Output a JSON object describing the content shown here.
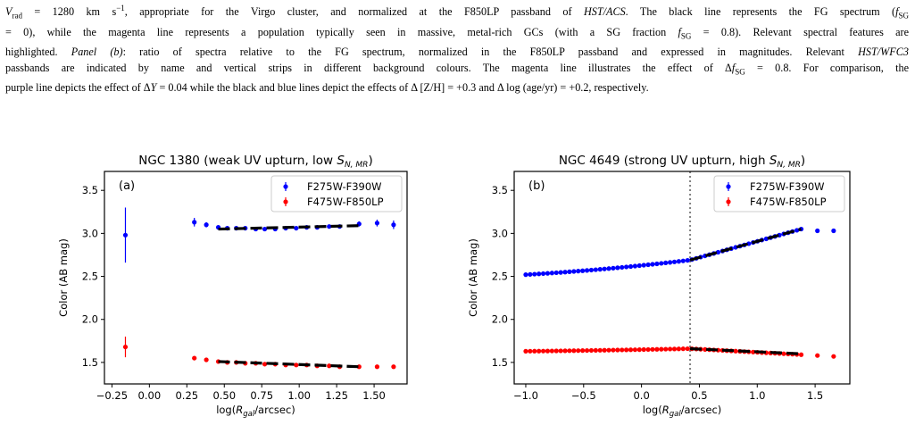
{
  "caption": {
    "lines": [
      "V_rad = 1280 km s^-1, appropriate for the Virgo cluster, and normalized at the F850LP passband of HST/ACS. The black line represents the FG spectrum (f_SG",
      "= 0), while the magenta line represents a population typically seen in massive, metal-rich GCs (with a SG fraction f_SG = 0.8). Relevant spectral features are",
      "highlighted. Panel (b): ratio of spectra relative to the FG spectrum, normalized in the F850LP passband and expressed in magnitudes. Relevant HST/WFC3",
      "passbands are indicated by name and vertical strips in different background colours. The magenta line illustrates the effect of Δf_SG = 0.8. For comparison, the",
      "purple line depicts the effect of ΔY = 0.04 while the black and blue lines depict the effects of Δ[Z/H] = +0.3 and Δlog(age/yr) = +0.2, respectively."
    ]
  },
  "chart_data": [
    {
      "type": "scatter",
      "title": "NGC 1380 (weak UV upturn, low S_N, MR)",
      "title_main": "NGC 1380 (weak UV upturn, low ",
      "title_sym": "S",
      "title_sub": "N, MR",
      "title_end": ")",
      "panel_label": "(a)",
      "xlabel": "log(R_gal/arcsec)",
      "xlabel_pre": "log(",
      "xlabel_sym": "R",
      "xlabel_sub": "gal",
      "xlabel_post": "/arcsec)",
      "ylabel": "Color (AB mag)",
      "xlim": [
        -0.3,
        1.72
      ],
      "ylim": [
        1.25,
        3.72
      ],
      "xticks": [
        -0.25,
        0.0,
        0.25,
        0.5,
        0.75,
        1.0,
        1.25,
        1.5
      ],
      "xtick_labels": [
        "−0.25",
        "0.00",
        "0.25",
        "0.50",
        "0.75",
        "1.00",
        "1.25",
        "1.50"
      ],
      "yticks": [
        1.5,
        2.0,
        2.5,
        3.0,
        3.5
      ],
      "ytick_labels": [
        "1.5",
        "2.0",
        "2.5",
        "3.0",
        "3.5"
      ],
      "legend_placement": "top-right",
      "series": [
        {
          "name": "F275W-F390W",
          "color": "#0000ff",
          "x": [
            -0.16,
            0.3,
            0.38,
            0.46,
            0.52,
            0.58,
            0.64,
            0.71,
            0.77,
            0.84,
            0.91,
            0.98,
            1.05,
            1.12,
            1.2,
            1.27,
            1.4,
            1.52,
            1.63
          ],
          "y": [
            2.98,
            3.13,
            3.1,
            3.07,
            3.06,
            3.06,
            3.06,
            3.05,
            3.05,
            3.05,
            3.06,
            3.06,
            3.07,
            3.07,
            3.08,
            3.08,
            3.11,
            3.12,
            3.1
          ],
          "yerr": [
            0.32,
            0.05,
            0.03,
            0.02,
            0.02,
            0.02,
            0.02,
            0.02,
            0.02,
            0.02,
            0.02,
            0.02,
            0.02,
            0.02,
            0.02,
            0.02,
            0.03,
            0.04,
            0.05
          ]
        },
        {
          "name": "F475W-F850LP",
          "color": "#ff0000",
          "x": [
            -0.16,
            0.3,
            0.38,
            0.46,
            0.52,
            0.58,
            0.64,
            0.71,
            0.77,
            0.84,
            0.91,
            0.98,
            1.05,
            1.12,
            1.2,
            1.27,
            1.4,
            1.52,
            1.63
          ],
          "y": [
            1.68,
            1.55,
            1.53,
            1.51,
            1.5,
            1.5,
            1.49,
            1.49,
            1.48,
            1.48,
            1.47,
            1.47,
            1.47,
            1.46,
            1.46,
            1.45,
            1.45,
            1.45,
            1.45
          ],
          "yerr": [
            0.12,
            0.02,
            0.01,
            0.01,
            0.01,
            0.01,
            0.01,
            0.01,
            0.01,
            0.01,
            0.01,
            0.01,
            0.01,
            0.01,
            0.01,
            0.01,
            0.01,
            0.01,
            0.01
          ]
        }
      ],
      "fits": [
        {
          "x": [
            0.46,
            1.4
          ],
          "y": [
            3.05,
            3.09
          ]
        },
        {
          "x": [
            0.46,
            1.4
          ],
          "y": [
            1.51,
            1.45
          ]
        }
      ]
    },
    {
      "type": "scatter",
      "title": "NGC 4649 (strong UV upturn, high S_N, MR)",
      "title_main": "NGC 4649 (strong UV upturn, high ",
      "title_sym": "S",
      "title_sub": "N, MR",
      "title_end": ")",
      "panel_label": "(b)",
      "xlabel": "log(R_gal/arcsec)",
      "xlabel_pre": "log(",
      "xlabel_sym": "R",
      "xlabel_sub": "gal",
      "xlabel_post": "/arcsec)",
      "ylabel": "Color (AB mag)",
      "xlim": [
        -1.1,
        1.8
      ],
      "ylim": [
        1.25,
        3.72
      ],
      "xticks": [
        -1.0,
        -0.5,
        0.0,
        0.5,
        1.0,
        1.5
      ],
      "xtick_labels": [
        "−1.0",
        "−0.5",
        "0.0",
        "0.5",
        "1.0",
        "1.5"
      ],
      "yticks": [
        1.5,
        2.0,
        2.5,
        3.0,
        3.5
      ],
      "ytick_labels": [
        "1.5",
        "2.0",
        "2.5",
        "3.0",
        "3.5"
      ],
      "vline_x": 0.42,
      "legend_placement": "top-right",
      "series": [
        {
          "name": "F275W-F390W",
          "color": "#0000ff",
          "curve": {
            "x0": -1.0,
            "x1": 1.38,
            "n": 64,
            "knee": 0.42,
            "y_start": 2.52,
            "y_knee": 2.69,
            "y_end": 3.05,
            "bow": 0.04
          },
          "tail": {
            "x": [
              1.52,
              1.66
            ],
            "y": [
              3.03,
              3.03
            ]
          }
        },
        {
          "name": "F475W-F850LP",
          "color": "#ff0000",
          "curve": {
            "x0": -1.0,
            "x1": 1.38,
            "n": 64,
            "knee": 0.42,
            "y_start": 1.63,
            "y_knee": 1.66,
            "y_end": 1.59,
            "bow": 0.015
          },
          "tail": {
            "x": [
              1.52,
              1.66
            ],
            "y": [
              1.58,
              1.57
            ]
          }
        }
      ],
      "fits": [
        {
          "x": [
            0.42,
            1.38
          ],
          "y": [
            2.69,
            3.05
          ]
        },
        {
          "x": [
            0.42,
            1.38
          ],
          "y": [
            1.66,
            1.6
          ]
        }
      ]
    }
  ]
}
